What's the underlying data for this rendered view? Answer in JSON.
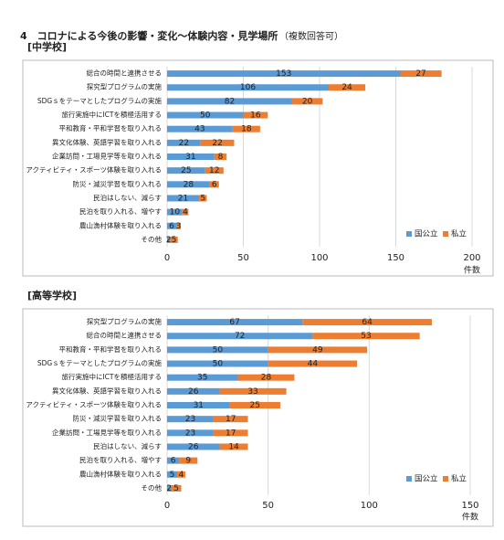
{
  "header": {
    "title": "4　コロナによる今後の影響・変化～体験内容・見学場所",
    "note": "（複数回答可）"
  },
  "chart_data": [
    {
      "type": "bar",
      "title": "[中学校]",
      "x_label": "件数",
      "categories": [
        "総合の時間と連携させる",
        "探究型プログラムの実施",
        "SDGｓをテーマとしたプログラムの実施",
        "旅行実施中にICTを積極活用する",
        "平和教育・平和学習を取り入れる",
        "異文化体験、英語学習を取り入れる",
        "企業訪問・工場見学等を取り入れる",
        "アクティビティ・スポーツ体験を取り入れる",
        "防災・減災学習を取り入れる",
        "民泊はしない、減らす",
        "民泊を取り入れる、増やす",
        "農山漁村体験を取り入れる",
        "その他"
      ],
      "series": [
        {
          "name": "国公立",
          "color": "#5b9bd5",
          "values": [
            153,
            106,
            82,
            50,
            43,
            22,
            31,
            25,
            28,
            21,
            10,
            6,
            2
          ]
        },
        {
          "name": "私立",
          "color": "#ed7d31",
          "values": [
            27,
            24,
            20,
            16,
            18,
            22,
            8,
            12,
            6,
            5,
            4,
            3,
            5
          ]
        }
      ],
      "xlim": [
        0,
        200
      ],
      "xticks": [
        0,
        50,
        100,
        150,
        200
      ],
      "grid": true,
      "legend": "bottom-right"
    },
    {
      "type": "bar",
      "title": "[高等学校]",
      "x_label": "件数",
      "categories": [
        "探究型プログラムの実施",
        "総合の時間と連携させる",
        "平和教育・平和学習を取り入れる",
        "SDGｓをテーマとしたプログラムの実施",
        "旅行実施中にICTを積極活用する",
        "異文化体験、英語学習を取り入れる",
        "アクティビティ・スポーツ体験を取り入れる",
        "防災・減災学習を取り入れる",
        "企業訪問・工場見学等を取り入れる",
        "民泊はしない、減らす",
        "民泊を取り入れる、増やす",
        "農山漁村体験を取り入れる",
        "その他"
      ],
      "series": [
        {
          "name": "国公立",
          "color": "#5b9bd5",
          "values": [
            67,
            72,
            50,
            50,
            35,
            26,
            31,
            23,
            23,
            26,
            6,
            5,
            2
          ]
        },
        {
          "name": "私立",
          "color": "#ed7d31",
          "values": [
            64,
            53,
            49,
            44,
            28,
            33,
            25,
            17,
            17,
            14,
            9,
            4,
            5
          ]
        }
      ],
      "xlim": [
        0,
        150
      ],
      "xticks": [
        0,
        50,
        100,
        150
      ],
      "grid": true,
      "legend": "bottom-right"
    }
  ]
}
